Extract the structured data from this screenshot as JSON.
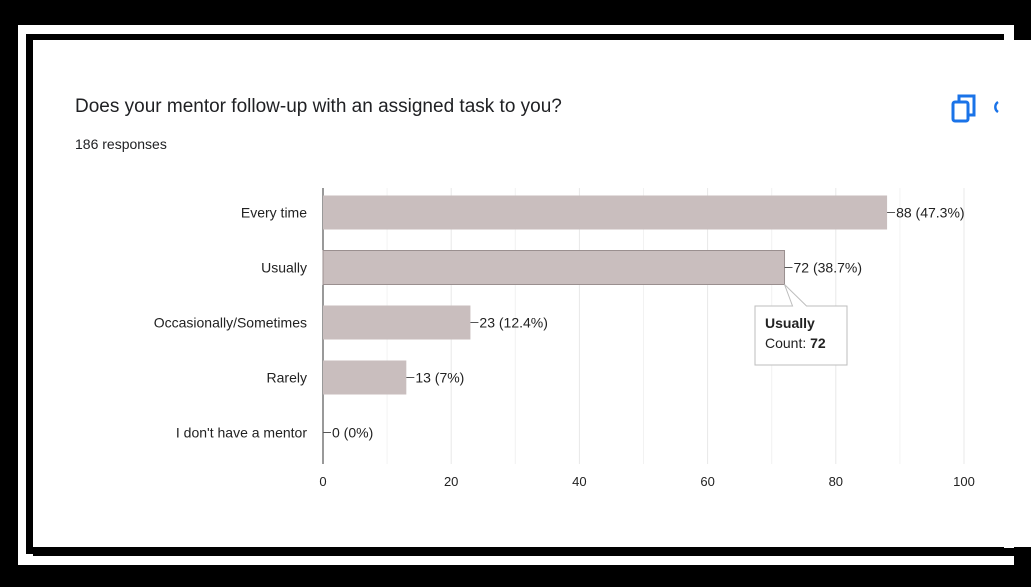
{
  "question": {
    "title": "Does your mentor follow-up with an assigned task to you?",
    "responses": "186 responses"
  },
  "icons": {
    "copy": "copy-icon",
    "edge": "more-icon"
  },
  "colors": {
    "bar": "#c9bebe",
    "bar_stroke": "#b8aaaa",
    "accent": "#1a73e8",
    "grid": "#e8e8e8",
    "axis": "#333333",
    "text": "#222222"
  },
  "chart_data": {
    "type": "bar",
    "orientation": "horizontal",
    "categories": [
      "Every time",
      "Usually",
      "Occasionally/Sometimes",
      "Rarely",
      "I don't have a mentor"
    ],
    "values": [
      88,
      72,
      23,
      13,
      0
    ],
    "data_labels": [
      "88 (47.3%)",
      "72 (38.7%)",
      "23 (12.4%)",
      "13 (7%)",
      "0 (0%)"
    ],
    "xlim": [
      0,
      100
    ],
    "x_ticks": [
      0,
      20,
      40,
      60,
      80,
      100
    ],
    "grid": true,
    "tooltip": {
      "category_index": 1,
      "title": "Usually",
      "count_label": "Count:",
      "count_value": "72"
    }
  }
}
